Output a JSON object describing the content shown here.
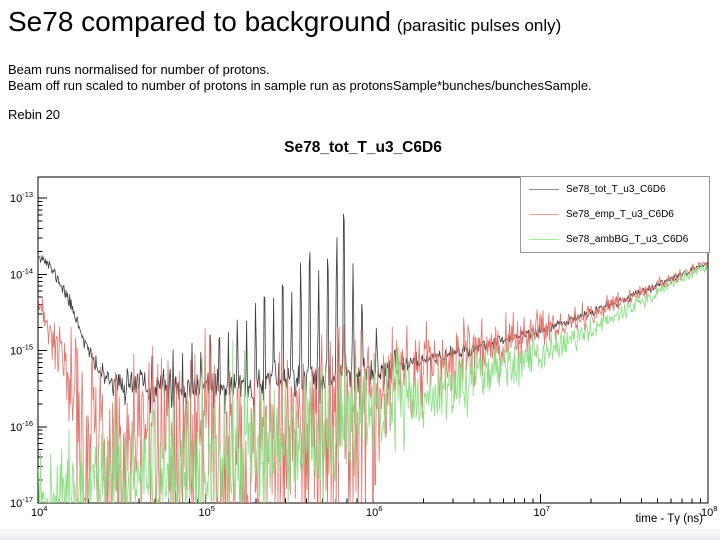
{
  "header": {
    "title": "Se78 compared to background",
    "subtitle": "(parasitic pulses only)"
  },
  "notes": {
    "line1": "Beam runs normalised for number of protons.",
    "line2": "Beam off run scaled to number of protons in sample run as protonsSample*bunches/bunchesSample.",
    "rebin": "Rebin 20"
  },
  "chart_data": {
    "type": "line",
    "title": "Se78_tot_T_u3_C6D6",
    "xlabel": "time - Tγ (ns)",
    "ylabel": "",
    "x_scale": "log",
    "y_scale": "log",
    "xlim": [
      10000,
      100000000
    ],
    "ylim": [
      1e-17,
      1.9e-13
    ],
    "x_tick_exponents": [
      4,
      5,
      6,
      7,
      8
    ],
    "y_tick_exponents": [
      -13,
      -14,
      -15,
      -16,
      -17
    ],
    "grid": false,
    "legend_position": "top-right",
    "frame_color": "#000000",
    "series": [
      {
        "name": "Se78_tot_T_u3_C6D6",
        "color": "#3d3d3d",
        "legend_color": "#8f8f8f",
        "seed": 11,
        "anchors": [
          [
            10000.0,
            1.9e-14
          ],
          [
            11500.0,
            1.35e-14
          ],
          [
            13000.0,
            9e-15
          ],
          [
            15000.0,
            5e-15
          ],
          [
            17000.0,
            2.6e-15
          ],
          [
            19000.0,
            1.3e-15
          ],
          [
            21500.0,
            7e-16
          ],
          [
            25000.0,
            4.4e-16
          ],
          [
            30000.0,
            3.7e-16
          ],
          [
            50000.0,
            3.2e-16
          ],
          [
            80000.0,
            3.1e-16
          ],
          [
            150000.0,
            3.4e-16
          ],
          [
            300000.0,
            4.1e-16
          ],
          [
            600000.0,
            4.7e-16
          ],
          [
            1000000.0,
            5.2e-16
          ],
          [
            2000000.0,
            7.4e-16
          ],
          [
            4000000.0,
            1.08e-15
          ],
          [
            10000000.0,
            1.85e-15
          ],
          [
            20000000.0,
            3.1e-15
          ],
          [
            40000000.0,
            5.8e-15
          ],
          [
            80000000.0,
            1.15e-14
          ],
          [
            100000000.0,
            1.42e-14
          ]
        ],
        "noise_sigma": [
          [
            4,
            0.04
          ],
          [
            4.3,
            0.05
          ],
          [
            4.6,
            0.1
          ],
          [
            5.2,
            0.11
          ],
          [
            5.8,
            0.12
          ],
          [
            6.2,
            0.06
          ],
          [
            6.8,
            0.04
          ],
          [
            7.3,
            0.03
          ],
          [
            8,
            0.02
          ]
        ],
        "down_prob": 0.05,
        "down_range": [
          4.45,
          6.1
        ],
        "down_mag": [
          0.15,
          0.25
        ],
        "up_prob": 0,
        "up_range": [
          0,
          0
        ],
        "up_mag": [
          0,
          0
        ],
        "spikes": [
          [
            34000.0,
            7e-16
          ],
          [
            41000.0,
            8e-16
          ],
          [
            48000.0,
            7.5e-16
          ],
          [
            56000.0,
            9e-16
          ],
          [
            64000.0,
            1.1e-15
          ],
          [
            73000.0,
            1e-15
          ],
          [
            83000.0,
            1.4e-15
          ],
          [
            94000.0,
            1.2e-15
          ],
          [
            107000.0,
            1.8e-15
          ],
          [
            121000.0,
            2.4e-15
          ],
          [
            137000.0,
            1.9e-15
          ],
          [
            155000.0,
            3.2e-15
          ],
          [
            176000.0,
            2.6e-15
          ],
          [
            199000.0,
            4.5e-15
          ],
          [
            225000.0,
            8e-15
          ],
          [
            255000.0,
            5e-15
          ],
          [
            289000.0,
            1.2e-14
          ],
          [
            327000.0,
            7e-15
          ],
          [
            370000.0,
            1.6e-14
          ],
          [
            419000.0,
            2.6e-14
          ],
          [
            474000.0,
            1.2e-14
          ],
          [
            537000.0,
            2.4e-14
          ],
          [
            608000.0,
            3e-14
          ],
          [
            670000.0,
            9.5e-14
          ],
          [
            760000.0,
            1.5e-14
          ],
          [
            860000.0,
            5e-15
          ],
          [
            1050000.0,
            2.6e-15
          ],
          [
            1350000.0,
            1.6e-15
          ],
          [
            2100000.0,
            1.3e-15
          ]
        ]
      },
      {
        "name": "Se78_emp_T_u3_C6D6",
        "color": "#e4736c",
        "legend_color": "#eda49e",
        "seed": 23,
        "anchors": [
          [
            10000.0,
            3.8e-15
          ],
          [
            11500.0,
            2.1e-15
          ],
          [
            13000.0,
            1e-15
          ],
          [
            15000.0,
            4.5e-16
          ],
          [
            18000.0,
            2.2e-16
          ],
          [
            25000.0,
            1.3e-16
          ],
          [
            50000.0,
            1.05e-16
          ],
          [
            100000.0,
            1.1e-16
          ],
          [
            200000.0,
            1.3e-16
          ],
          [
            400000.0,
            1.8e-16
          ],
          [
            700000.0,
            2.5e-16
          ],
          [
            1000000.0,
            3.3e-16
          ],
          [
            2000000.0,
            5.6e-16
          ],
          [
            4000000.0,
            9.2e-16
          ],
          [
            10000000.0,
            1.75e-15
          ],
          [
            20000000.0,
            3.05e-15
          ],
          [
            40000000.0,
            5.75e-15
          ],
          [
            80000000.0,
            1.14e-14
          ],
          [
            100000000.0,
            1.39e-14
          ]
        ],
        "noise_sigma": [
          [
            4,
            0.06
          ],
          [
            4.15,
            0.3
          ],
          [
            4.3,
            0.5
          ],
          [
            5,
            0.5
          ],
          [
            5.8,
            0.45
          ],
          [
            6,
            0.3
          ],
          [
            6.5,
            0.22
          ],
          [
            7,
            0.12
          ],
          [
            7.5,
            0.05
          ],
          [
            8,
            0.03
          ]
        ],
        "down_prob": 0.35,
        "down_range": [
          4.2,
          6.05
        ],
        "down_mag": [
          0.5,
          1.6
        ],
        "up_prob": 0,
        "up_range": [
          0,
          0
        ],
        "up_mag": [
          0,
          0
        ],
        "spikes": []
      },
      {
        "name": "Se78_ambBG_T_u3_C6D6",
        "color": "#8bdf83",
        "legend_color": "#a9e8a3",
        "seed": 37,
        "anchors": [
          [
            10000.0,
            1.1e-17
          ],
          [
            30000.0,
            1.4e-17
          ],
          [
            100000.0,
            2.2e-17
          ],
          [
            200000.0,
            3.3e-17
          ],
          [
            400000.0,
            5.5e-17
          ],
          [
            700000.0,
            9e-17
          ],
          [
            1000000.0,
            1.35e-16
          ],
          [
            2000000.0,
            2.3e-16
          ],
          [
            4000000.0,
            4.2e-16
          ],
          [
            10000000.0,
            8.5e-16
          ],
          [
            20000000.0,
            1.9e-15
          ],
          [
            40000000.0,
            4.4e-15
          ],
          [
            80000000.0,
            1.05e-14
          ],
          [
            100000000.0,
            1.3e-14
          ]
        ],
        "noise_sigma": [
          [
            4,
            0.35
          ],
          [
            5,
            0.38
          ],
          [
            5.7,
            0.35
          ],
          [
            6,
            0.25
          ],
          [
            6.5,
            0.22
          ],
          [
            7,
            0.12
          ],
          [
            7.5,
            0.06
          ],
          [
            8,
            0.03
          ]
        ],
        "down_prob": 0,
        "down_range": [
          0,
          0
        ],
        "down_mag": [
          0,
          0
        ],
        "up_prob": 0.3,
        "up_range": [
          4.3,
          6.2
        ],
        "up_mag": [
          0.2,
          0.6
        ],
        "spikes": []
      }
    ]
  }
}
